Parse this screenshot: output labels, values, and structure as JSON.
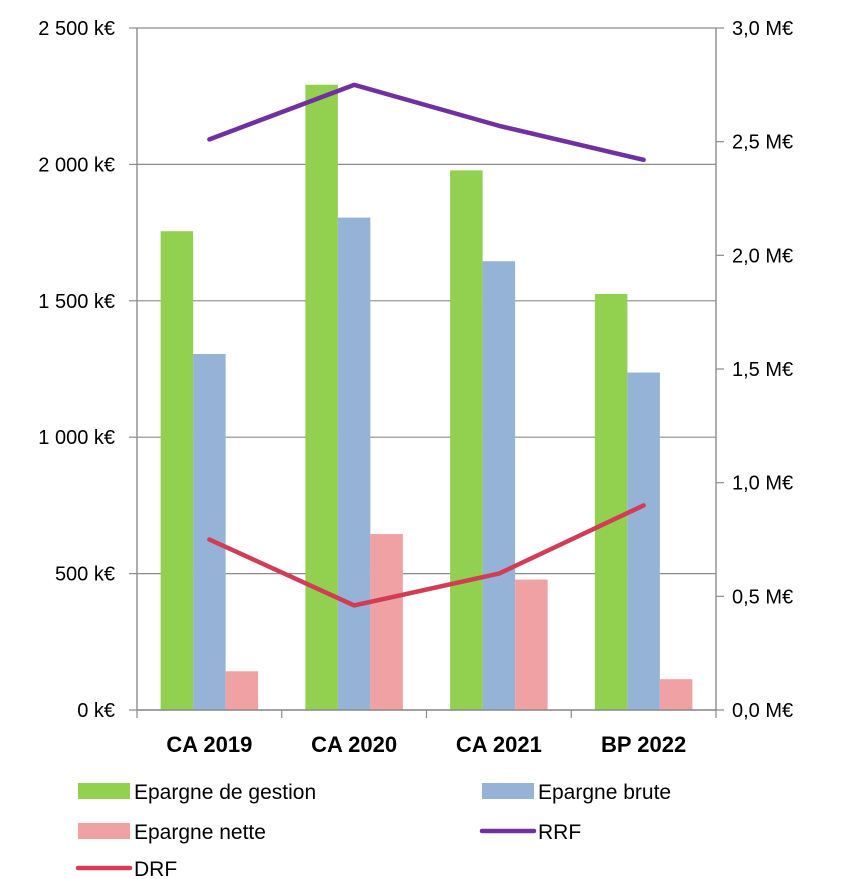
{
  "chart_data": {
    "type": "bar",
    "categories": [
      "CA 2019",
      "CA 2020",
      "CA 2021",
      "BP 2022"
    ],
    "series": [
      {
        "name": "Epargne de gestion",
        "type": "bar",
        "axis": "left",
        "color": "#92D050",
        "values": [
          1755,
          2292,
          1978,
          1525
        ]
      },
      {
        "name": "Epargne brute",
        "type": "bar",
        "axis": "left",
        "color": "#95B3D7",
        "values": [
          1305,
          1805,
          1645,
          1237
        ]
      },
      {
        "name": "Epargne nette",
        "type": "bar",
        "axis": "left",
        "color": "#F0A1A3",
        "values": [
          142,
          645,
          478,
          113
        ]
      },
      {
        "name": "RRF",
        "type": "line",
        "axis": "right",
        "color": "#7030A0",
        "values": [
          2.51,
          2.75,
          2.57,
          2.42
        ]
      },
      {
        "name": "DRF",
        "type": "line",
        "axis": "right",
        "color": "#D13C56",
        "values": [
          0.75,
          0.46,
          0.6,
          0.9
        ]
      }
    ],
    "y_left": {
      "min": 0,
      "max": 2500,
      "ticks": [
        "0 k€",
        "500 k€",
        "1 000 k€",
        "1 500 k€",
        "2 000 k€",
        "2 500 k€"
      ]
    },
    "y_right": {
      "min": 0,
      "max": 3.0,
      "ticks": [
        "0,0 M€",
        "0,5 M€",
        "1,0 M€",
        "1,5 M€",
        "2,0 M€",
        "2,5 M€",
        "3,0 M€"
      ]
    },
    "grid": true,
    "legend_position": "bottom"
  }
}
